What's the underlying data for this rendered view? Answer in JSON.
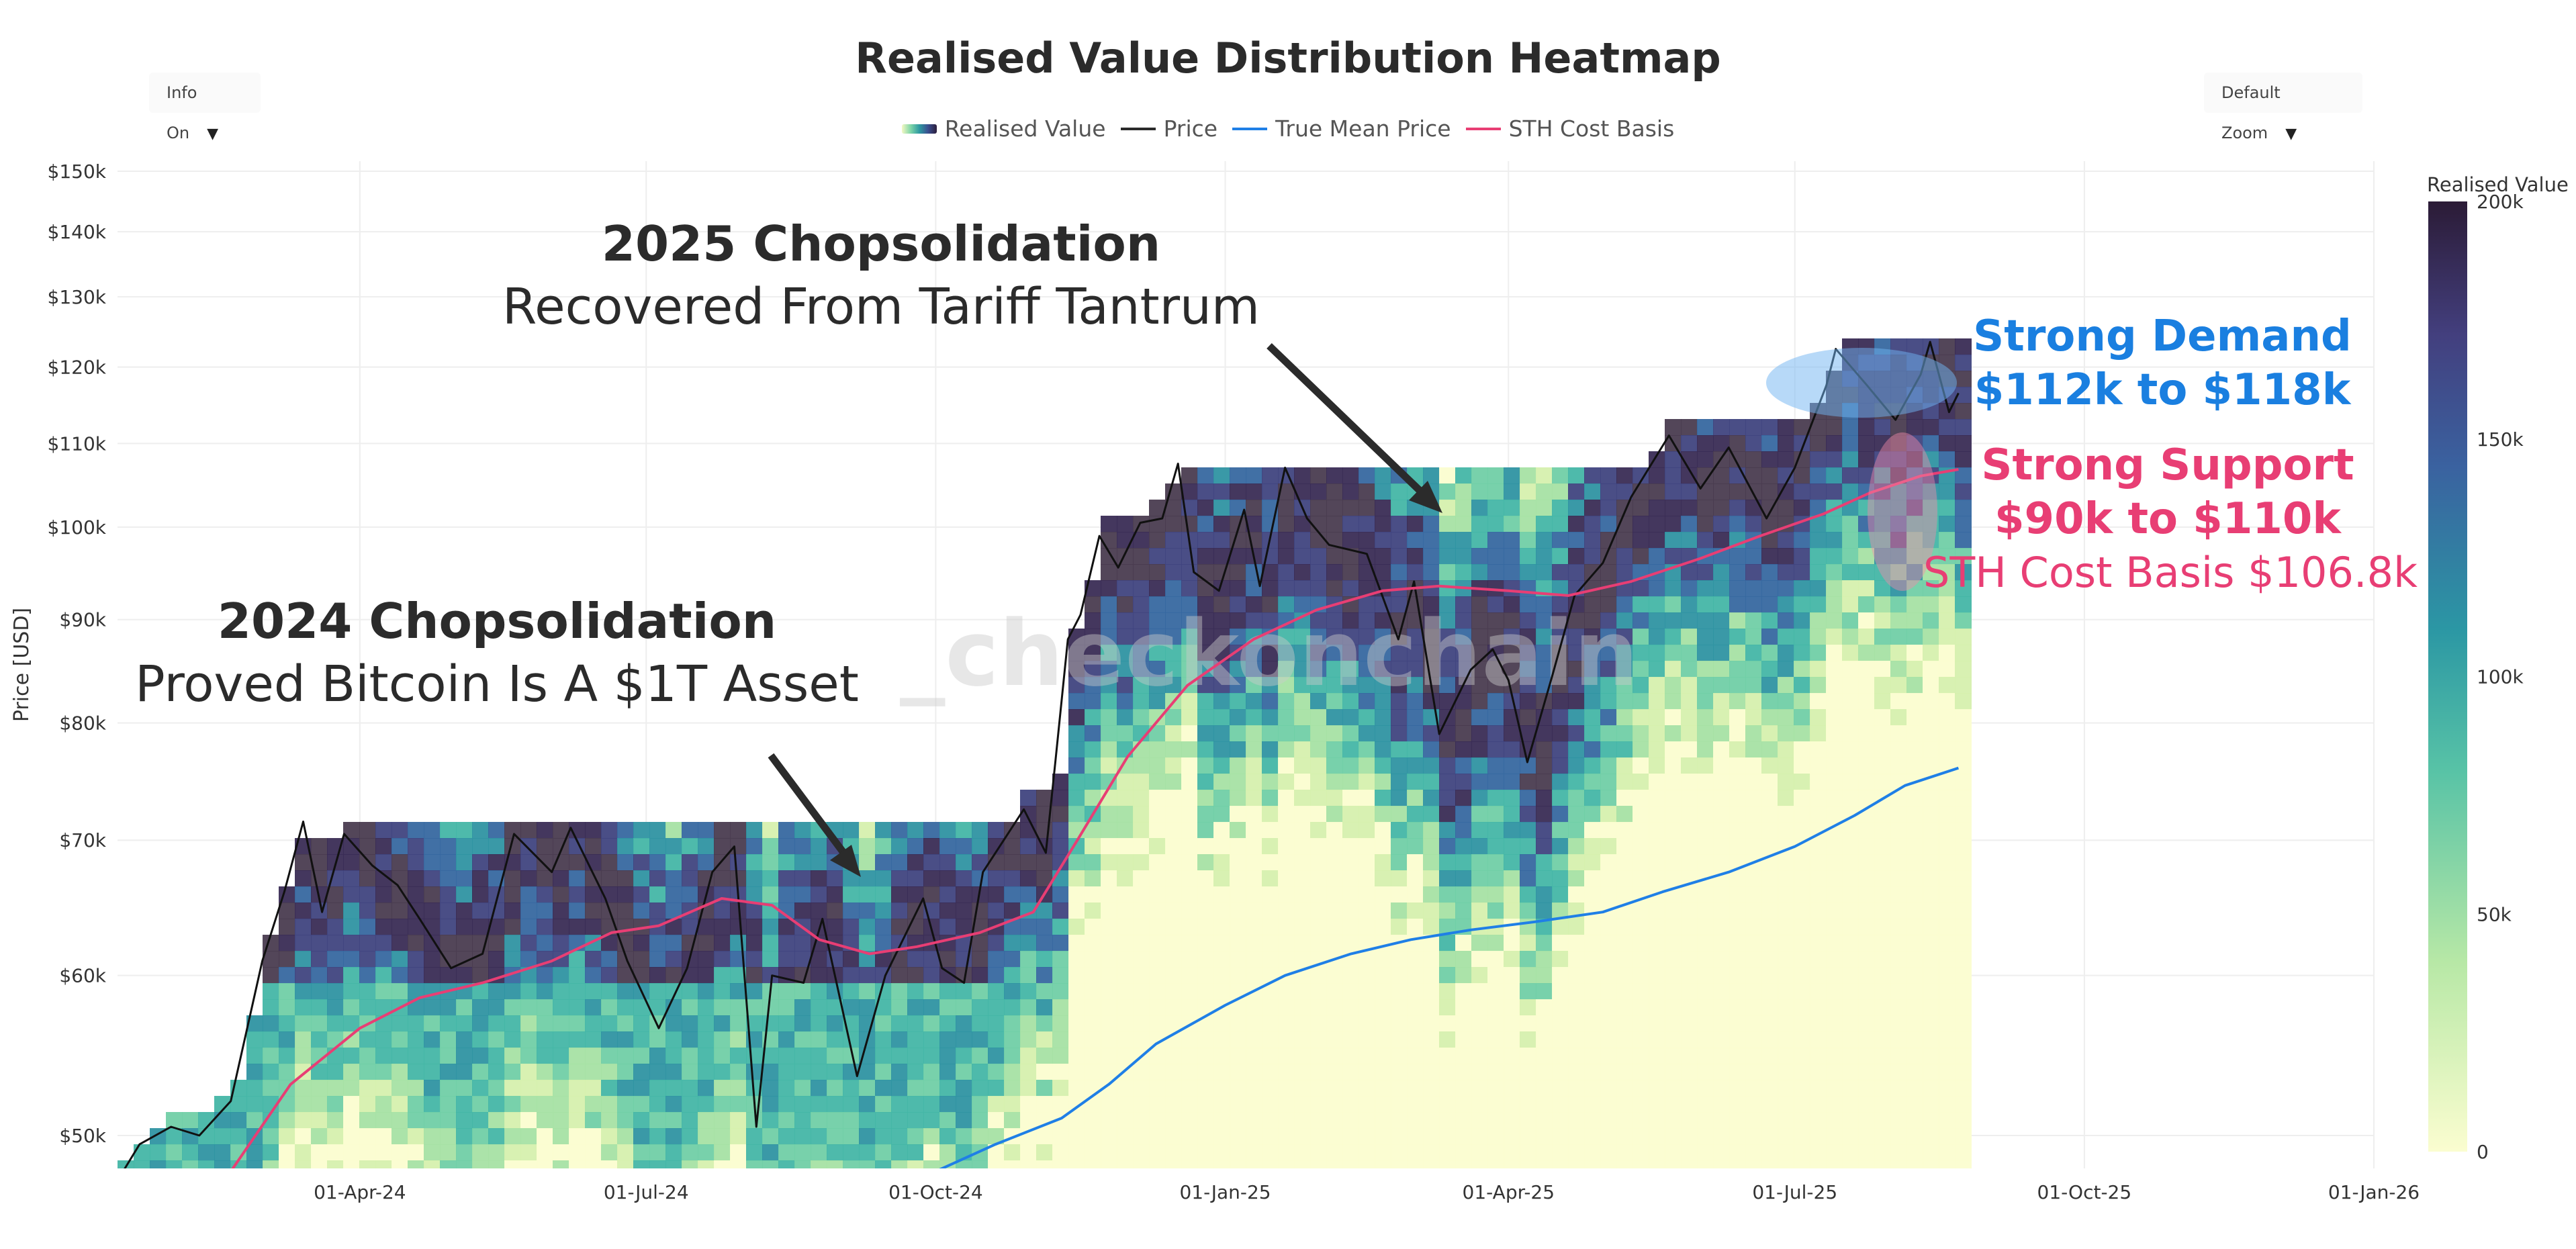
{
  "title": "Realised Value Distribution Heatmap",
  "controls": {
    "info_toggle": "Info On",
    "zoom": "Default Zoom",
    "caret": "▼"
  },
  "legend": [
    {
      "label": "Realised Value",
      "kind": "gradient"
    },
    {
      "label": "Price",
      "kind": "line",
      "color": "#2a2a2a"
    },
    {
      "label": "True Mean Price",
      "kind": "line",
      "color": "#1f7fe6"
    },
    {
      "label": "STH Cost Basis",
      "kind": "line",
      "color": "#e83e74"
    }
  ],
  "watermark": "_checkonchain",
  "colors": {
    "price": "#111111",
    "true_mean": "#1f7fe6",
    "sth": "#e83e74",
    "demand": "#1a7fe0",
    "support": "#e83e74",
    "heat_low": "#f4f8c4",
    "heat_high": "#2d1e3c"
  },
  "chart_data": {
    "type": "heatmap",
    "title": "Realised Value Distribution Heatmap",
    "ylabel": "Price [USD]",
    "y_scale": "log",
    "ylim": [
      48000,
      158000
    ],
    "xlim": [
      "2024-01-15",
      "2026-01-01"
    ],
    "x_ticks": [
      {
        "date": "2024-04-01",
        "label": "01-Apr-24"
      },
      {
        "date": "2024-07-01",
        "label": "01-Jul-24"
      },
      {
        "date": "2024-10-01",
        "label": "01-Oct-24"
      },
      {
        "date": "2025-01-01",
        "label": "01-Jan-25"
      },
      {
        "date": "2025-04-01",
        "label": "01-Apr-25"
      },
      {
        "date": "2025-07-01",
        "label": "01-Jul-25"
      },
      {
        "date": "2025-10-01",
        "label": "01-Oct-25"
      },
      {
        "date": "2026-01-01",
        "label": "01-Jan-26"
      }
    ],
    "y_ticks": [
      {
        "value": 50000,
        "label": "$50k"
      },
      {
        "value": 60000,
        "label": "$60k"
      },
      {
        "value": 70000,
        "label": "$70k"
      },
      {
        "value": 80000,
        "label": "$80k"
      },
      {
        "value": 90000,
        "label": "$90k"
      },
      {
        "value": 100000,
        "label": "$100k"
      },
      {
        "value": 110000,
        "label": "$110k"
      },
      {
        "value": 120000,
        "label": "$120k"
      },
      {
        "value": 130000,
        "label": "$130k"
      },
      {
        "value": 140000,
        "label": "$140k"
      },
      {
        "value": 150000,
        "label": "$150k"
      }
    ],
    "colorbar": {
      "title": "Realised Value",
      "range": [
        0,
        200000
      ],
      "ticks": [
        {
          "value": 0,
          "label": "0"
        },
        {
          "value": 50000,
          "label": "50k"
        },
        {
          "value": 100000,
          "label": "100k"
        },
        {
          "value": 150000,
          "label": "150k"
        },
        {
          "value": 200000,
          "label": "200k"
        }
      ]
    },
    "grid": true,
    "legend_position": "top-center",
    "series": [
      {
        "name": "Price",
        "points": [
          [
            "2024-01-15",
            47500
          ],
          [
            "2024-01-22",
            49500
          ],
          [
            "2024-02-01",
            50500
          ],
          [
            "2024-02-10",
            50000
          ],
          [
            "2024-02-20",
            52000
          ],
          [
            "2024-03-01",
            61000
          ],
          [
            "2024-03-08",
            66000
          ],
          [
            "2024-03-14",
            71500
          ],
          [
            "2024-03-20",
            64500
          ],
          [
            "2024-03-27",
            70500
          ],
          [
            "2024-04-05",
            68000
          ],
          [
            "2024-04-13",
            66500
          ],
          [
            "2024-04-20",
            64000
          ],
          [
            "2024-04-30",
            60500
          ],
          [
            "2024-05-10",
            61500
          ],
          [
            "2024-05-20",
            70500
          ],
          [
            "2024-06-01",
            67500
          ],
          [
            "2024-06-07",
            71000
          ],
          [
            "2024-06-18",
            65500
          ],
          [
            "2024-06-25",
            61000
          ],
          [
            "2024-07-05",
            56500
          ],
          [
            "2024-07-14",
            60500
          ],
          [
            "2024-07-22",
            67500
          ],
          [
            "2024-07-29",
            69500
          ],
          [
            "2024-08-05",
            50500
          ],
          [
            "2024-08-10",
            60000
          ],
          [
            "2024-08-20",
            59500
          ],
          [
            "2024-08-26",
            64000
          ],
          [
            "2024-09-06",
            53500
          ],
          [
            "2024-09-15",
            60000
          ],
          [
            "2024-09-27",
            65500
          ],
          [
            "2024-10-03",
            60500
          ],
          [
            "2024-10-10",
            59500
          ],
          [
            "2024-10-16",
            67500
          ],
          [
            "2024-10-29",
            72500
          ],
          [
            "2024-11-05",
            69000
          ],
          [
            "2024-11-08",
            76500
          ],
          [
            "2024-11-12",
            88000
          ],
          [
            "2024-11-16",
            90500
          ],
          [
            "2024-11-22",
            99000
          ],
          [
            "2024-11-28",
            95500
          ],
          [
            "2024-12-05",
            100500
          ],
          [
            "2024-12-12",
            101000
          ],
          [
            "2024-12-17",
            107500
          ],
          [
            "2024-12-22",
            95000
          ],
          [
            "2024-12-30",
            93000
          ],
          [
            "2025-01-07",
            102000
          ],
          [
            "2025-01-12",
            93500
          ],
          [
            "2025-01-20",
            107000
          ],
          [
            "2025-01-27",
            101000
          ],
          [
            "2025-02-03",
            98000
          ],
          [
            "2025-02-15",
            97000
          ],
          [
            "2025-02-25",
            88000
          ],
          [
            "2025-03-02",
            94000
          ],
          [
            "2025-03-10",
            79000
          ],
          [
            "2025-03-20",
            85000
          ],
          [
            "2025-03-27",
            87000
          ],
          [
            "2025-04-01",
            84000
          ],
          [
            "2025-04-07",
            76500
          ],
          [
            "2025-04-15",
            84500
          ],
          [
            "2025-04-22",
            92500
          ],
          [
            "2025-05-01",
            96000
          ],
          [
            "2025-05-10",
            103500
          ],
          [
            "2025-05-22",
            111000
          ],
          [
            "2025-06-01",
            104500
          ],
          [
            "2025-06-10",
            109500
          ],
          [
            "2025-06-22",
            101000
          ],
          [
            "2025-07-01",
            107000
          ],
          [
            "2025-07-11",
            117500
          ],
          [
            "2025-07-14",
            122500
          ],
          [
            "2025-07-24",
            117500
          ],
          [
            "2025-08-02",
            113000
          ],
          [
            "2025-08-10",
            119000
          ],
          [
            "2025-08-13",
            123500
          ],
          [
            "2025-08-19",
            114000
          ],
          [
            "2025-08-22",
            116500
          ]
        ]
      },
      {
        "name": "True Mean Price",
        "points": [
          [
            "2024-10-01",
            48000
          ],
          [
            "2024-10-20",
            49500
          ],
          [
            "2024-11-10",
            51000
          ],
          [
            "2024-11-25",
            53000
          ],
          [
            "2024-12-10",
            55500
          ],
          [
            "2025-01-01",
            58000
          ],
          [
            "2025-01-20",
            60000
          ],
          [
            "2025-02-10",
            61500
          ],
          [
            "2025-03-01",
            62500
          ],
          [
            "2025-03-20",
            63200
          ],
          [
            "2025-04-10",
            63800
          ],
          [
            "2025-05-01",
            64500
          ],
          [
            "2025-05-20",
            66000
          ],
          [
            "2025-06-10",
            67500
          ],
          [
            "2025-07-01",
            69500
          ],
          [
            "2025-07-20",
            72000
          ],
          [
            "2025-08-05",
            74500
          ],
          [
            "2025-08-22",
            76000
          ]
        ]
      },
      {
        "name": "STH Cost Basis",
        "points": [
          [
            "2024-02-20",
            48000
          ],
          [
            "2024-03-10",
            53000
          ],
          [
            "2024-04-01",
            56500
          ],
          [
            "2024-04-20",
            58500
          ],
          [
            "2024-05-10",
            59500
          ],
          [
            "2024-06-01",
            61000
          ],
          [
            "2024-06-20",
            63000
          ],
          [
            "2024-07-05",
            63500
          ],
          [
            "2024-07-25",
            65500
          ],
          [
            "2024-08-10",
            65000
          ],
          [
            "2024-08-25",
            62500
          ],
          [
            "2024-09-10",
            61500
          ],
          [
            "2024-09-25",
            62000
          ],
          [
            "2024-10-15",
            63000
          ],
          [
            "2024-11-01",
            64500
          ],
          [
            "2024-11-15",
            70000
          ],
          [
            "2024-12-01",
            77000
          ],
          [
            "2024-12-20",
            83500
          ],
          [
            "2025-01-10",
            88000
          ],
          [
            "2025-01-30",
            91000
          ],
          [
            "2025-02-20",
            93000
          ],
          [
            "2025-03-10",
            93500
          ],
          [
            "2025-04-01",
            93000
          ],
          [
            "2025-04-20",
            92500
          ],
          [
            "2025-05-10",
            94000
          ],
          [
            "2025-06-01",
            96500
          ],
          [
            "2025-06-20",
            99000
          ],
          [
            "2025-07-10",
            101500
          ],
          [
            "2025-07-25",
            104000
          ],
          [
            "2025-08-10",
            106000
          ],
          [
            "2025-08-22",
            106800
          ]
        ]
      }
    ],
    "annotations": [
      {
        "id": "a2025",
        "title": "2025 Chopsolidation",
        "subtitle": "Recovered From Tariff Tantrum"
      },
      {
        "id": "a2024",
        "title": "2024 Chopsolidation",
        "subtitle": "Proved Bitcoin Is A $1T Asset"
      },
      {
        "id": "demand",
        "line1": "Strong Demand",
        "line2": "$112k to $118k"
      },
      {
        "id": "support",
        "line1": "Strong Support",
        "line2": "$90k to $110k",
        "line3": "STH Cost Basis $106.8k"
      }
    ]
  }
}
